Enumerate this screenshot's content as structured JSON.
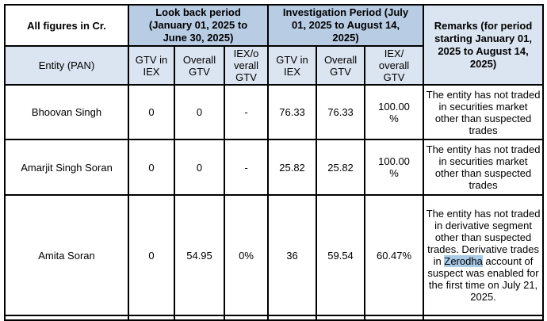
{
  "document": {
    "corner_label": "All figures in Cr.",
    "lookback_header": "Look back period\n(January 01, 2025 to\nJune 30, 2025)",
    "investigation_header": "Investigation Period (July\n01, 2025 to August 14,\n2025)",
    "remarks_header": "Remarks (for period\nstarting January 01,\n2025 to August 14,\n2025)",
    "entity_header": "Entity (PAN)",
    "sub_headers": [
      "GTV in\nIEX",
      "Overall\nGTV",
      "IEX/o\nverall\nGTV",
      "GTV in\nIEX",
      "Overall\nGTV",
      "IEX/\noverall\nGTV"
    ],
    "rows": [
      {
        "entity": "Bhoovan Singh",
        "values": [
          "0",
          "0",
          "-",
          "76.33",
          "76.33",
          "100.00\n%"
        ],
        "remarks": [
          {
            "text": "The entity has not traded in securities market other than suspected trades"
          }
        ]
      },
      {
        "entity": "Amarjit Singh Soran",
        "values": [
          "0",
          "0",
          "-",
          "25.82",
          "25.82",
          "100.00\n%"
        ],
        "remarks": [
          {
            "text": "The entity has not traded in securities market other than suspected trades"
          }
        ]
      },
      {
        "entity": "Amita Soran",
        "values": [
          "0",
          "54.95",
          "0%",
          "36",
          "59.54",
          "60.47%"
        ],
        "remarks": [
          {
            "text": "The entity has not traded in derivative segment other than suspected trades. Derivative trades in "
          },
          {
            "text": "Zerodha",
            "highlight": true
          },
          {
            "text": " account of suspect was enabled for the first time on July 21, 2025."
          }
        ]
      }
    ],
    "colors": {
      "group_header_blue": "#b8cce4",
      "subheader_blue": "#dbe5f1",
      "highlight_blue": "#a9cbe8",
      "border": "#000000"
    }
  }
}
